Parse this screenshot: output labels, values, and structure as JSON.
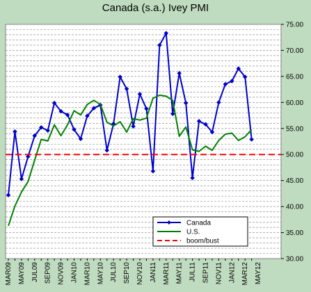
{
  "chart_data": {
    "type": "line",
    "title": "Canada (s.a.) Ivey PMI",
    "xlabel": "",
    "ylabel": "",
    "ylim": [
      30,
      75
    ],
    "yticks": [
      "30.00",
      "35.00",
      "40.00",
      "45.00",
      "50.00",
      "55.00",
      "60.00",
      "65.00",
      "70.00",
      "75.00"
    ],
    "y_axis_side": "right",
    "x_tick_labels": [
      "MAR09",
      "MAY09",
      "JUL09",
      "SEP09",
      "NOV09",
      "JAN10",
      "MAR10",
      "MAY10",
      "JUL10",
      "SEP10",
      "NOV10",
      "JAN11",
      "MAR11",
      "MAY11",
      "JUL11",
      "SEP11",
      "NOV11",
      "JAN12",
      "MAR12",
      "MAY12"
    ],
    "x_tick_every_months": 2,
    "grid": "horizontal-dashed",
    "legend_position": "bottom-right",
    "series": [
      {
        "name": "Canada",
        "color": "#0000cc",
        "marker": "diamond",
        "style": "solid",
        "values": [
          42.2,
          54.4,
          45.3,
          49.6,
          53.6,
          55.2,
          54.6,
          59.9,
          58.3,
          57.6,
          54.8,
          53.0,
          57.4,
          58.9,
          59.5,
          50.8,
          55.9,
          64.9,
          62.6,
          55.4,
          61.6,
          58.8,
          46.8,
          71.0,
          73.3,
          57.8,
          65.6,
          59.9,
          45.5,
          56.4,
          55.8,
          54.3,
          60.0,
          63.5,
          64.1,
          66.5,
          64.9,
          52.9
        ]
      },
      {
        "name": "U.S.",
        "color": "#008000",
        "style": "solid",
        "values": [
          36.3,
          40.1,
          42.8,
          44.8,
          48.9,
          52.9,
          52.6,
          55.7,
          53.6,
          55.7,
          58.4,
          57.6,
          59.6,
          60.4,
          59.6,
          56.2,
          55.5,
          56.3,
          54.3,
          56.9,
          56.6,
          57.0,
          60.8,
          61.4,
          61.2,
          60.4,
          53.5,
          55.3,
          50.9,
          50.6,
          51.6,
          50.8,
          52.7,
          53.9,
          54.1,
          52.7,
          53.4,
          54.8
        ]
      },
      {
        "name": "boom/bust",
        "color": "#ff0000",
        "style": "dashed",
        "constant": 50
      }
    ]
  }
}
